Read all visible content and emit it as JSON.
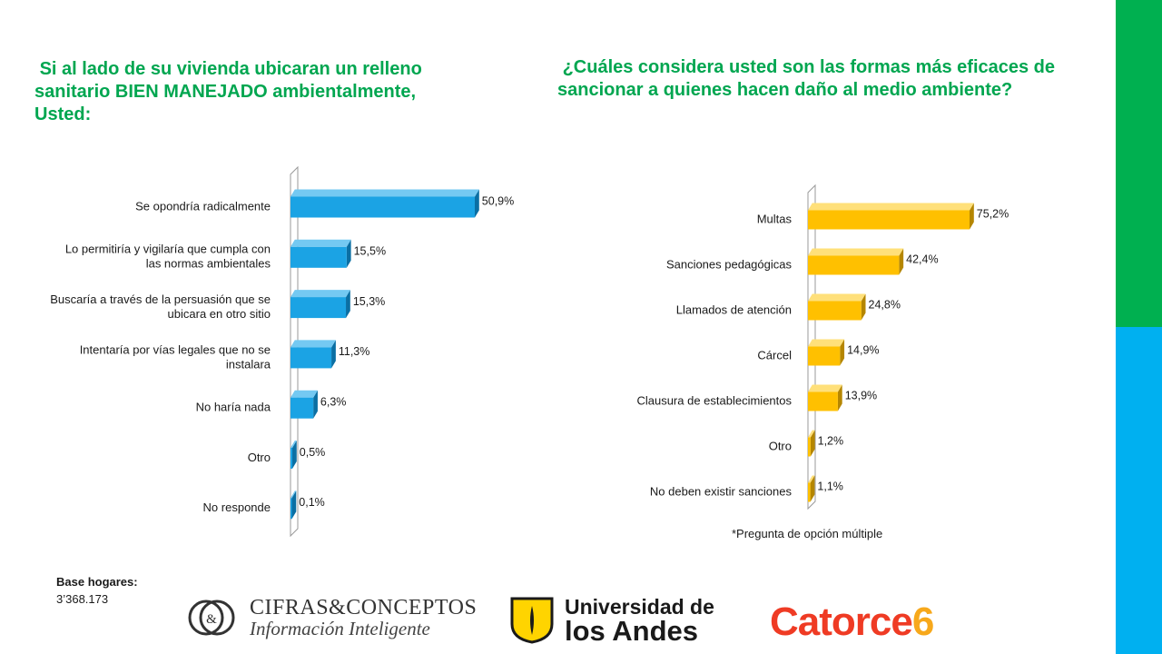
{
  "titles": {
    "left": " Si al lado de su vivienda ubicaran un relleno sanitario BIEN MANEJADO ambientalmente, Usted:",
    "right": " ¿Cuáles considera usted son las formas más eficaces de sancionar a quienes hacen daño al medio ambiente?"
  },
  "note": "*Pregunta de opción múltiple",
  "base": {
    "label": "Base hogares:",
    "value": "3’368.173"
  },
  "logos": {
    "cifras_name": "CIFRAS&CONCEPTOS",
    "cifras_tagline": "Información Inteligente",
    "andes_line1": "Universidad de",
    "andes_line2": "los Andes",
    "catorce_word": "Catorce",
    "catorce_num": "6"
  },
  "colors": {
    "left_bar": "#1ba3e4",
    "left_bar_top": "#74c9f2",
    "left_bar_side": "#0b6fa3",
    "right_bar": "#ffc000",
    "right_bar_top": "#ffe07a",
    "right_bar_side": "#b58600",
    "strip_top": "#00b050",
    "strip_bottom": "#00b0f0",
    "title": "#00a650"
  },
  "chart_data": [
    {
      "type": "bar",
      "orientation": "horizontal",
      "title": " Si al lado de su vivienda ubicaran un relleno sanitario BIEN MANEJADO ambientalmente, Usted:",
      "categories": [
        [
          "Se opondría radicalmente"
        ],
        [
          "Lo permitiría y vigilaría que cumpla con",
          "las normas ambientales"
        ],
        [
          "Buscaría a través de la persuasión que se",
          "ubicara en otro sitio"
        ],
        [
          "Intentaría por vías legales que no se",
          "instalara"
        ],
        [
          "No haría nada"
        ],
        [
          "Otro"
        ],
        [
          "No responde"
        ]
      ],
      "values": [
        50.9,
        15.5,
        15.3,
        11.3,
        6.3,
        0.5,
        0.1
      ],
      "value_labels": [
        "50,9%",
        "15,5%",
        "15,3%",
        "11,3%",
        "6,3%",
        "0,5%",
        "0,1%"
      ],
      "xlim": [
        0,
        50.9
      ],
      "grid": false,
      "legend": "none"
    },
    {
      "type": "bar",
      "orientation": "horizontal",
      "title": " ¿Cuáles considera usted son las formas más eficaces de sancionar a quienes hacen daño al medio ambiente?",
      "categories": [
        [
          "Multas"
        ],
        [
          "Sanciones pedagógicas"
        ],
        [
          "Llamados de atención"
        ],
        [
          "Cárcel"
        ],
        [
          "Clausura de establecimientos"
        ],
        [
          "Otro"
        ],
        [
          "No deben existir sanciones"
        ]
      ],
      "values": [
        75.2,
        42.4,
        24.8,
        14.9,
        13.9,
        1.2,
        1.1
      ],
      "value_labels": [
        "75,2%",
        "42,4%",
        "24,8%",
        "14,9%",
        "13,9%",
        "1,2%",
        "1,1%"
      ],
      "xlim": [
        0,
        75.2
      ],
      "grid": false,
      "legend": "none"
    }
  ]
}
